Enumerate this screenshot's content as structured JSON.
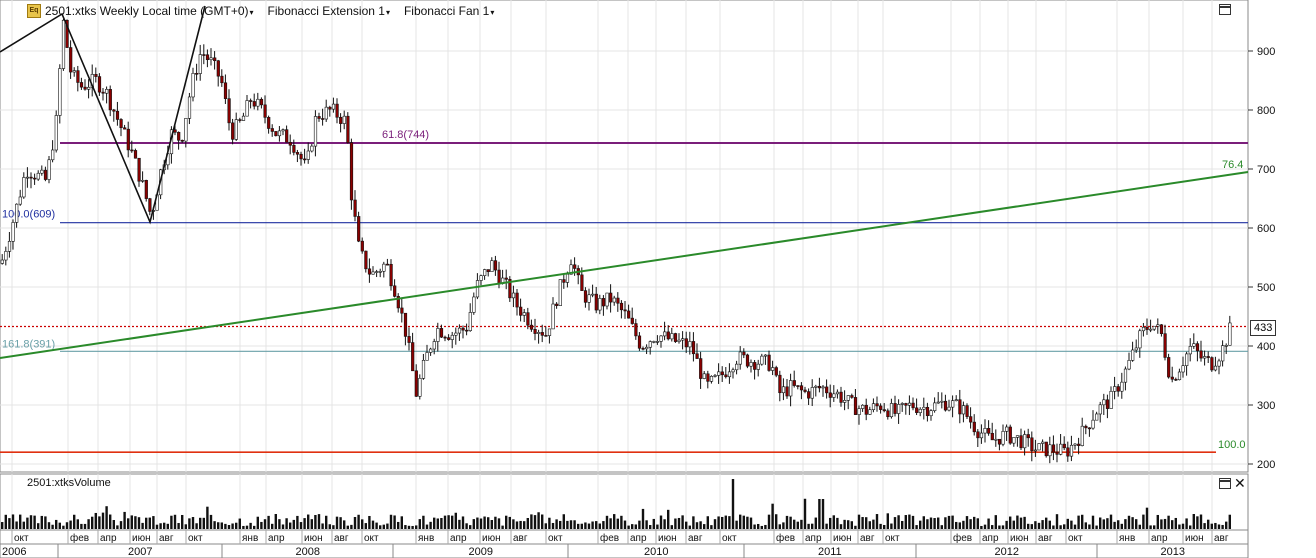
{
  "header": {
    "logo_text": "Eq",
    "title": "2501:xtks Weekly Local time (GMT+0)",
    "study1": "Fibonacci Extension 1",
    "study2": "Fibonacci Fan 1",
    "dropdown_glyph": "▾"
  },
  "volume_panel": {
    "title": "2501:xtksVolume"
  },
  "last_price_label": "433",
  "close_glyph": "✕",
  "chart_data": {
    "type": "candlestick",
    "price_axis": {
      "ticks": [
        200,
        300,
        400,
        500,
        600,
        700,
        800,
        900
      ],
      "range": [
        190,
        960
      ]
    },
    "fib_levels": [
      {
        "label": "61.8(744)",
        "value": 744,
        "color": "#7a1e7a"
      },
      {
        "label": "100.0(609)",
        "value": 609,
        "color": "#2030a0"
      },
      {
        "label": "161.8(391)",
        "value": 391,
        "color": "#6aa0a8"
      },
      {
        "label": "100.0",
        "value": 220,
        "color": "#e03010"
      }
    ],
    "fan_label": "76.4",
    "last_price": 433,
    "month_labels": [
      "окт",
      "фев",
      "апр",
      "июн",
      "авг",
      "окт",
      "янв",
      "апр",
      "июн",
      "авг",
      "окт",
      "янв",
      "апр",
      "июн",
      "авг",
      "окт",
      "фев",
      "апр",
      "июн",
      "авг",
      "окт",
      "фев",
      "апр",
      "июн",
      "авг",
      "окт",
      "фев",
      "апр",
      "июн",
      "авг",
      "окт",
      "янв",
      "апр",
      "июн",
      "авг"
    ],
    "year_labels": [
      "2006",
      "2007",
      "2008",
      "2009",
      "2010",
      "2011",
      "2012",
      "2013"
    ],
    "price_path": [
      [
        0,
        540
      ],
      [
        10,
        600
      ],
      [
        25,
        700
      ],
      [
        45,
        680
      ],
      [
        55,
        780
      ],
      [
        62,
        950
      ],
      [
        70,
        860
      ],
      [
        80,
        840
      ],
      [
        95,
        850
      ],
      [
        105,
        830
      ],
      [
        120,
        770
      ],
      [
        130,
        730
      ],
      [
        140,
        680
      ],
      [
        150,
        620
      ],
      [
        160,
        700
      ],
      [
        170,
        760
      ],
      [
        180,
        750
      ],
      [
        190,
        840
      ],
      [
        200,
        900
      ],
      [
        210,
        880
      ],
      [
        220,
        850
      ],
      [
        230,
        760
      ],
      [
        240,
        780
      ],
      [
        250,
        820
      ],
      [
        260,
        800
      ],
      [
        275,
        760
      ],
      [
        290,
        750
      ],
      [
        305,
        700
      ],
      [
        315,
        790
      ],
      [
        330,
        800
      ],
      [
        345,
        780
      ],
      [
        350,
        660
      ],
      [
        358,
        560
      ],
      [
        370,
        520
      ],
      [
        385,
        540
      ],
      [
        395,
        490
      ],
      [
        405,
        420
      ],
      [
        415,
        320
      ],
      [
        425,
        380
      ],
      [
        435,
        430
      ],
      [
        450,
        420
      ],
      [
        465,
        430
      ],
      [
        475,
        500
      ],
      [
        490,
        540
      ],
      [
        505,
        500
      ],
      [
        515,
        470
      ],
      [
        530,
        440
      ],
      [
        545,
        420
      ],
      [
        555,
        480
      ],
      [
        570,
        550
      ],
      [
        580,
        490
      ],
      [
        595,
        470
      ],
      [
        610,
        480
      ],
      [
        625,
        450
      ],
      [
        640,
        400
      ],
      [
        655,
        420
      ],
      [
        670,
        410
      ],
      [
        690,
        400
      ],
      [
        705,
        330
      ],
      [
        720,
        350
      ],
      [
        735,
        380
      ],
      [
        750,
        375
      ],
      [
        770,
        370
      ],
      [
        778,
        320
      ],
      [
        790,
        330
      ],
      [
        805,
        320
      ],
      [
        820,
        330
      ],
      [
        835,
        320
      ],
      [
        850,
        300
      ],
      [
        865,
        290
      ],
      [
        880,
        300
      ],
      [
        895,
        285
      ],
      [
        910,
        300
      ],
      [
        925,
        295
      ],
      [
        945,
        305
      ],
      [
        960,
        295
      ],
      [
        975,
        260
      ],
      [
        990,
        240
      ],
      [
        1005,
        250
      ],
      [
        1020,
        240
      ],
      [
        1035,
        225
      ],
      [
        1050,
        225
      ],
      [
        1065,
        220
      ],
      [
        1080,
        250
      ],
      [
        1095,
        290
      ],
      [
        1110,
        310
      ],
      [
        1125,
        360
      ],
      [
        1140,
        420
      ],
      [
        1150,
        440
      ],
      [
        1160,
        420
      ],
      [
        1170,
        340
      ],
      [
        1180,
        370
      ],
      [
        1190,
        400
      ],
      [
        1200,
        380
      ],
      [
        1210,
        370
      ],
      [
        1220,
        390
      ],
      [
        1230,
        433
      ]
    ]
  }
}
